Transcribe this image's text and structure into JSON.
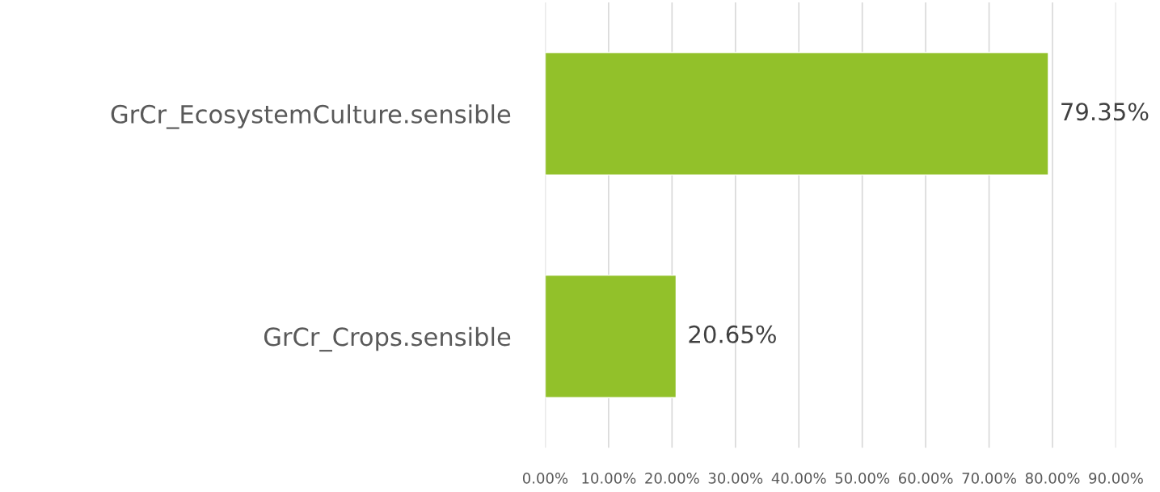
{
  "chart_data": {
    "type": "bar",
    "orientation": "horizontal",
    "categories": [
      "GrCr_EcosystemCulture.sensible",
      "GrCr_Crops.sensible"
    ],
    "values": [
      79.35,
      20.65
    ],
    "value_labels": [
      "79.35%",
      "20.65%"
    ],
    "color": "#92c12a",
    "xlim": [
      0,
      90
    ],
    "xticks": [
      {
        "value": 0,
        "label": "0.00%"
      },
      {
        "value": 10,
        "label": "10.00%"
      },
      {
        "value": 20,
        "label": "20.00%"
      },
      {
        "value": 30,
        "label": "30.00%"
      },
      {
        "value": 40,
        "label": "40.00%"
      },
      {
        "value": 50,
        "label": "50.00%"
      },
      {
        "value": 60,
        "label": "60.00%"
      },
      {
        "value": 70,
        "label": "70.00%"
      },
      {
        "value": 80,
        "label": "80.00%"
      },
      {
        "value": 90,
        "label": "90.00%"
      }
    ],
    "grid": "x"
  }
}
